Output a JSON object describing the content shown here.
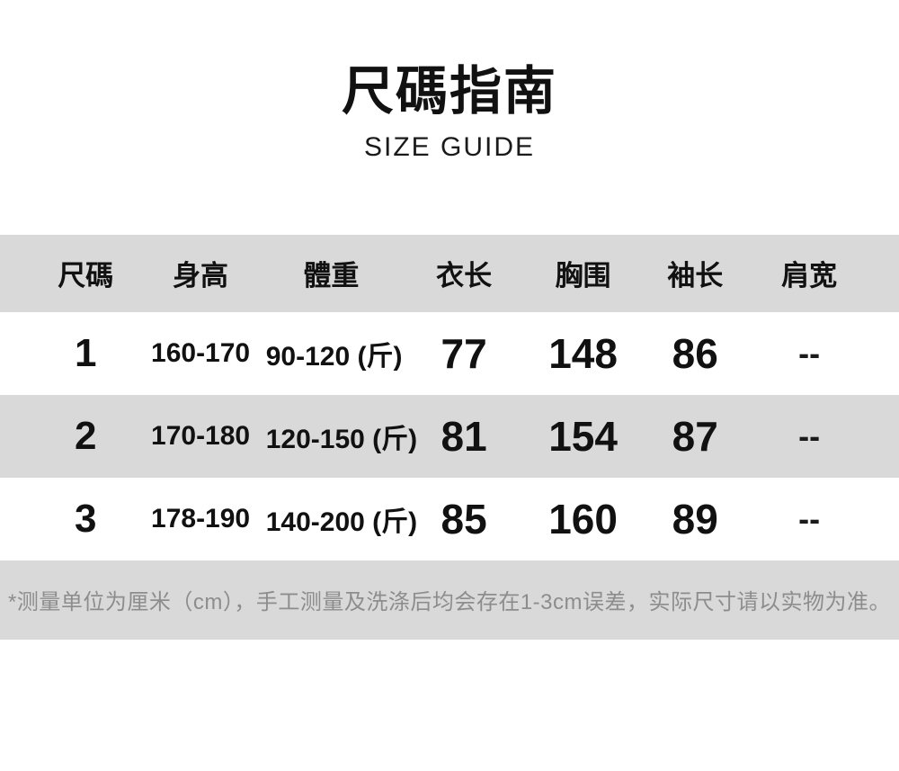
{
  "page": {
    "title": "尺碼指南",
    "subtitle": "SIZE GUIDE"
  },
  "chart_data": {
    "type": "table",
    "title": "尺碼指南",
    "subtitle": "SIZE GUIDE",
    "unit": "cm",
    "columns": [
      "尺碼",
      "身高",
      "體重",
      "衣长",
      "胸围",
      "袖长",
      "肩宽"
    ],
    "rows": [
      [
        "1",
        "160-170",
        "90-120 (斤)",
        "77",
        "148",
        "86",
        "--"
      ],
      [
        "2",
        "170-180",
        "120-150 (斤)",
        "81",
        "154",
        "87",
        "--"
      ],
      [
        "3",
        "178-190",
        "140-200 (斤)",
        "85",
        "160",
        "89",
        "--"
      ]
    ],
    "footnote": "*测量单位为厘米（cm），手工测量及洗涤后均会存在1-3cm误差，实际尺寸请以实物为准。"
  },
  "colors": {
    "band_gray": "#d9d9d9",
    "text_black": "#111111",
    "note_gray": "#8d8d8d",
    "background": "#ffffff"
  }
}
